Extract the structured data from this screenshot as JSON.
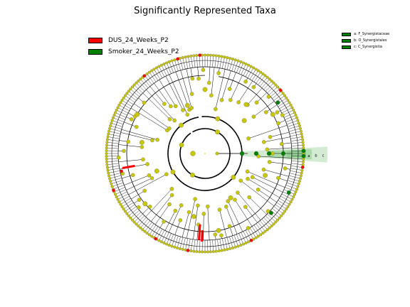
{
  "title": "Significantly Represented Taxa",
  "legend_main": [
    {
      "label": "DUS_24_Weeks_P2",
      "color": "#ff0000"
    },
    {
      "label": "Smoker_24_Weeks_P2",
      "color": "#008000"
    }
  ],
  "legend_small": [
    {
      "label": "a: F_Synergistaceae",
      "color": "#008000"
    },
    {
      "label": "b: O_Synergistales",
      "color": "#008000"
    },
    {
      "label": "c: C_Synergistia",
      "color": "#008000"
    }
  ],
  "highlight_letters": [
    "a",
    "b",
    "c"
  ],
  "colors": {
    "node": "#c8c800",
    "node_edge": "#555555",
    "dus": "#ff0000",
    "smoker": "#008000",
    "clade_shade": "#7fc77f"
  }
}
